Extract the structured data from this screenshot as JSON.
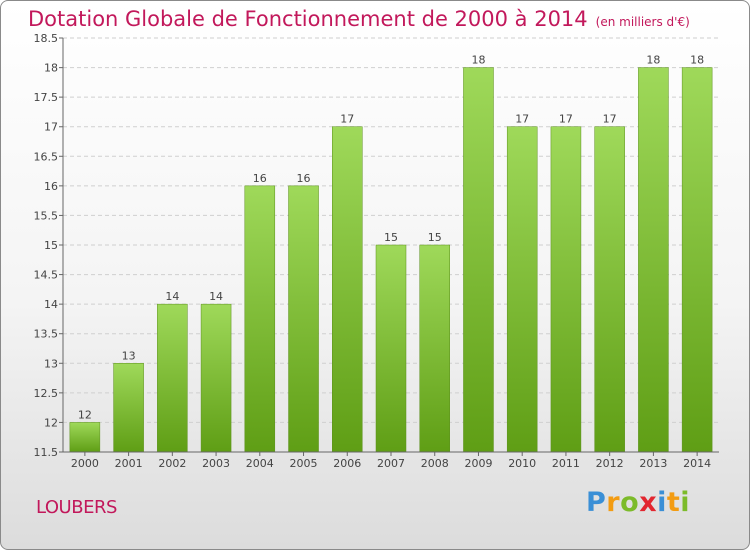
{
  "header": {
    "title": "Dotation Globale de Fonctionnement de 2000 à 2014",
    "unit": "(en milliers d'€)"
  },
  "footer": {
    "commune": "LOUBERS",
    "logo_text": "Proxiti",
    "logo_letters": [
      {
        "ch": "P",
        "color": "#3a8fd6"
      },
      {
        "ch": "r",
        "color": "#f39c12"
      },
      {
        "ch": "o",
        "color": "#7cbb2a"
      },
      {
        "ch": "x",
        "color": "#e2262f"
      },
      {
        "ch": "i",
        "color": "#3a8fd6"
      },
      {
        "ch": "t",
        "color": "#f39c12"
      },
      {
        "ch": "i",
        "color": "#7cbb2a"
      }
    ]
  },
  "colors": {
    "title": "#c2185b",
    "bar_top": "#9fd95a",
    "bar_bottom": "#5f9e15"
  },
  "chart_data": {
    "type": "bar",
    "categories": [
      "2000",
      "2001",
      "2002",
      "2003",
      "2004",
      "2005",
      "2006",
      "2007",
      "2008",
      "2009",
      "2010",
      "2011",
      "2012",
      "2013",
      "2014"
    ],
    "values": [
      12,
      13,
      14,
      14,
      16,
      16,
      17,
      15,
      15,
      18,
      17,
      17,
      17,
      18,
      18
    ],
    "data_labels": [
      "12",
      "13",
      "14",
      "14",
      "16",
      "16",
      "17",
      "15",
      "15",
      "18",
      "17",
      "17",
      "17",
      "18",
      "18"
    ],
    "yticks": [
      "11.5",
      "12",
      "12.5",
      "13",
      "13.5",
      "14",
      "14.5",
      "15",
      "15.5",
      "16",
      "16.5",
      "17",
      "17.5",
      "18",
      "18.5"
    ],
    "ylim": [
      11.5,
      18.5
    ],
    "grid": true,
    "legend": "none"
  }
}
